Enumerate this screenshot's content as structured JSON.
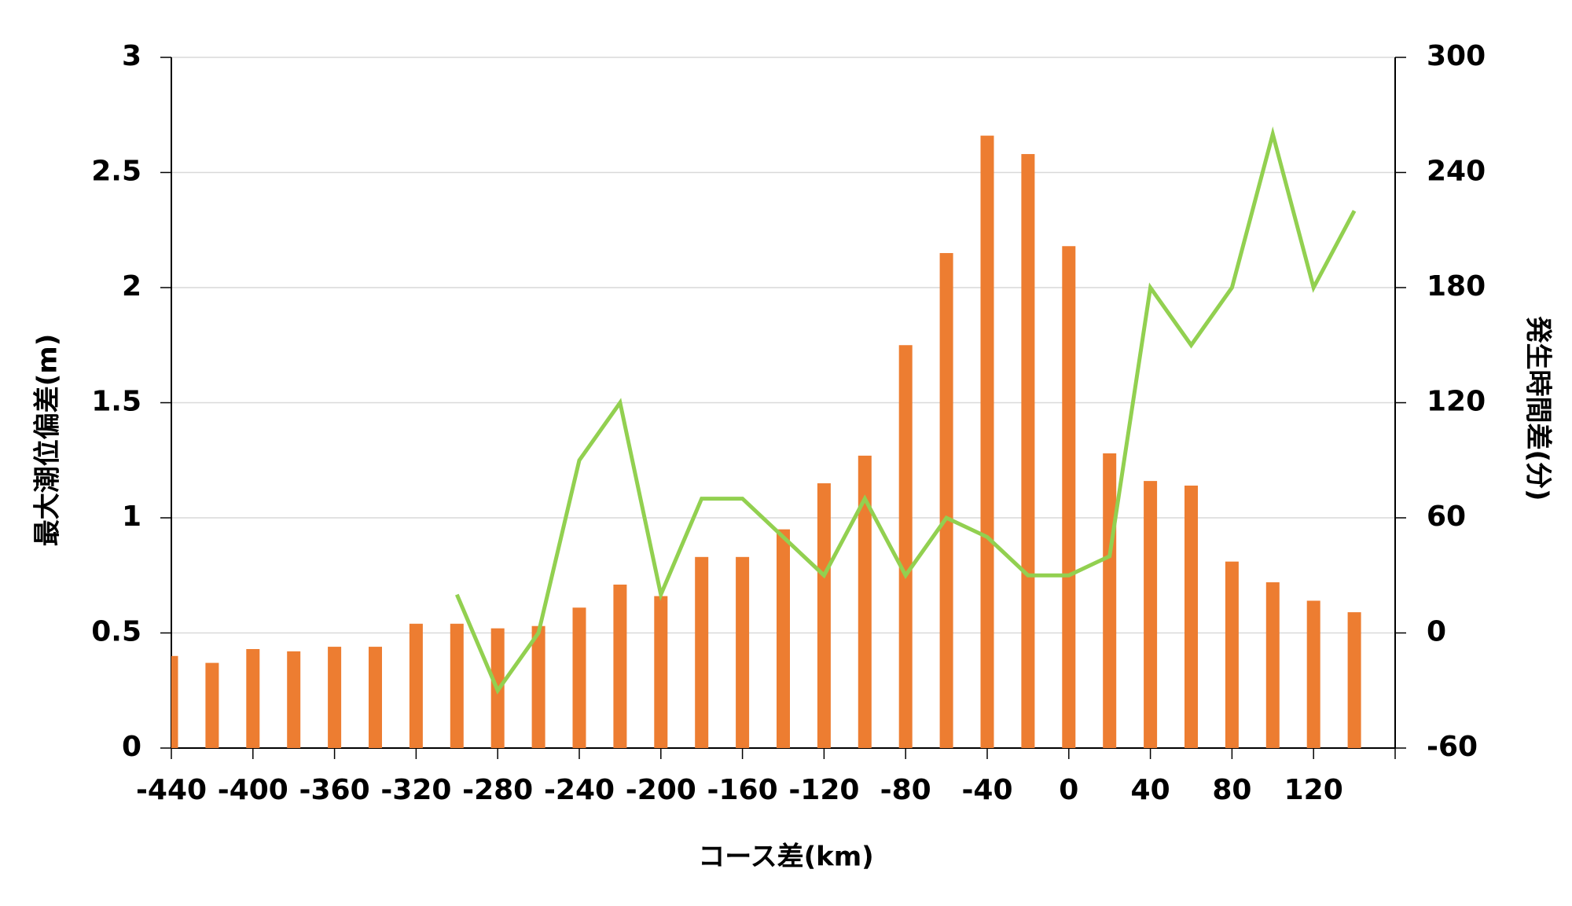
{
  "chart_data": {
    "type": "bar",
    "x_label": "コース差(km)",
    "y_label": "最大潮位偏差(m)",
    "y2_label": "発生時間差(分)",
    "x": [
      -440,
      -420,
      -400,
      -380,
      -360,
      -340,
      -320,
      -300,
      -280,
      -260,
      -240,
      -220,
      -200,
      -180,
      -160,
      -140,
      -120,
      -100,
      -80,
      -60,
      -40,
      -20,
      0,
      20,
      40,
      60,
      80,
      100,
      120,
      140
    ],
    "series": [
      {
        "type": "bar",
        "color": "#ed7d31",
        "values": [
          0.4,
          0.37,
          0.43,
          0.42,
          0.44,
          0.44,
          0.54,
          0.54,
          0.52,
          0.53,
          0.61,
          0.71,
          0.66,
          0.83,
          0.83,
          0.95,
          1.15,
          1.27,
          1.75,
          2.15,
          2.66,
          2.58,
          2.18,
          1.28,
          1.16,
          1.14,
          0.81,
          0.72,
          0.64,
          0.59
        ]
      },
      {
        "type": "line",
        "axis": "y2",
        "color": "#92d050",
        "values": [
          null,
          null,
          null,
          null,
          null,
          null,
          null,
          20,
          -30,
          0,
          90,
          120,
          20,
          70,
          70,
          50,
          30,
          70,
          30,
          60,
          50,
          30,
          30,
          40,
          180,
          150,
          180,
          260,
          180,
          220
        ]
      }
    ],
    "xlim": [
      -440,
      160
    ],
    "xticks": [
      -440,
      -400,
      -360,
      -320,
      -280,
      -240,
      -200,
      -160,
      -120,
      -80,
      -40,
      0,
      40,
      80,
      120
    ],
    "ylim": [
      0,
      3
    ],
    "yticks": [
      0,
      0.5,
      1,
      1.5,
      2,
      2.5,
      3
    ],
    "y2lim": [
      -60,
      300
    ],
    "y2ticks": [
      -60,
      0,
      60,
      120,
      180,
      240,
      300
    ],
    "grid": true
  }
}
